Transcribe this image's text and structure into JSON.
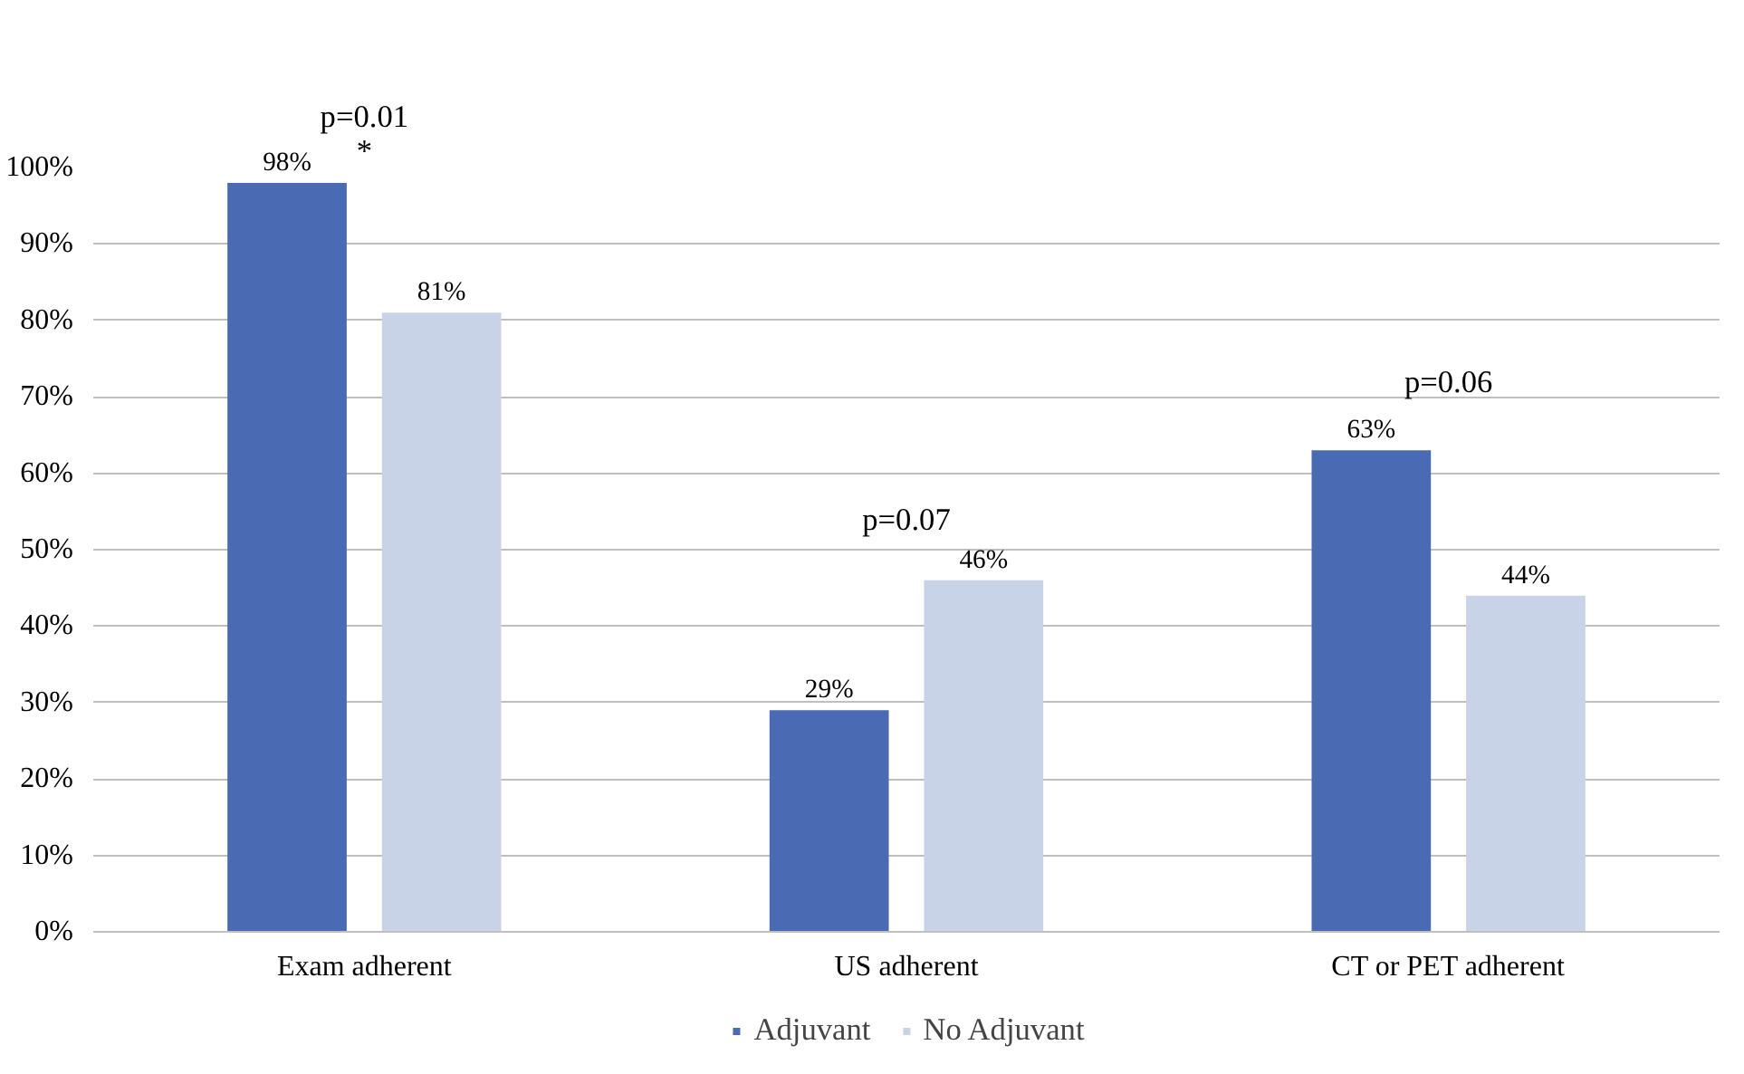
{
  "chart_data": {
    "type": "bar",
    "categories": [
      "Exam adherent",
      "US adherent",
      "CT or PET adherent"
    ],
    "series": [
      {
        "name": "Adjuvant",
        "color": "#4a6bb4",
        "values": [
          98,
          29,
          63
        ]
      },
      {
        "name": "No Adjuvant",
        "color": "#c9d3e8",
        "values": [
          81,
          46,
          44
        ]
      }
    ],
    "ylim": [
      0,
      100
    ],
    "yticks": [
      {
        "value": 0,
        "label": "0%"
      },
      {
        "value": 10,
        "label": "10%"
      },
      {
        "value": 20,
        "label": "20%"
      },
      {
        "value": 30,
        "label": "30%"
      },
      {
        "value": 40,
        "label": "40%"
      },
      {
        "value": 50,
        "label": "50%"
      },
      {
        "value": 60,
        "label": "60%"
      },
      {
        "value": 70,
        "label": "70%"
      },
      {
        "value": 80,
        "label": "80%"
      },
      {
        "value": 90,
        "label": "90%"
      },
      {
        "value": 100,
        "label": "100%"
      }
    ],
    "value_labels": [
      [
        "98%",
        "29%",
        "63%"
      ],
      [
        "81%",
        "46%",
        "44%"
      ]
    ],
    "annotations": [
      "p=0.01",
      "*",
      "p=0.07",
      "p=0.06"
    ],
    "grid": "y",
    "legend": "bottom"
  }
}
